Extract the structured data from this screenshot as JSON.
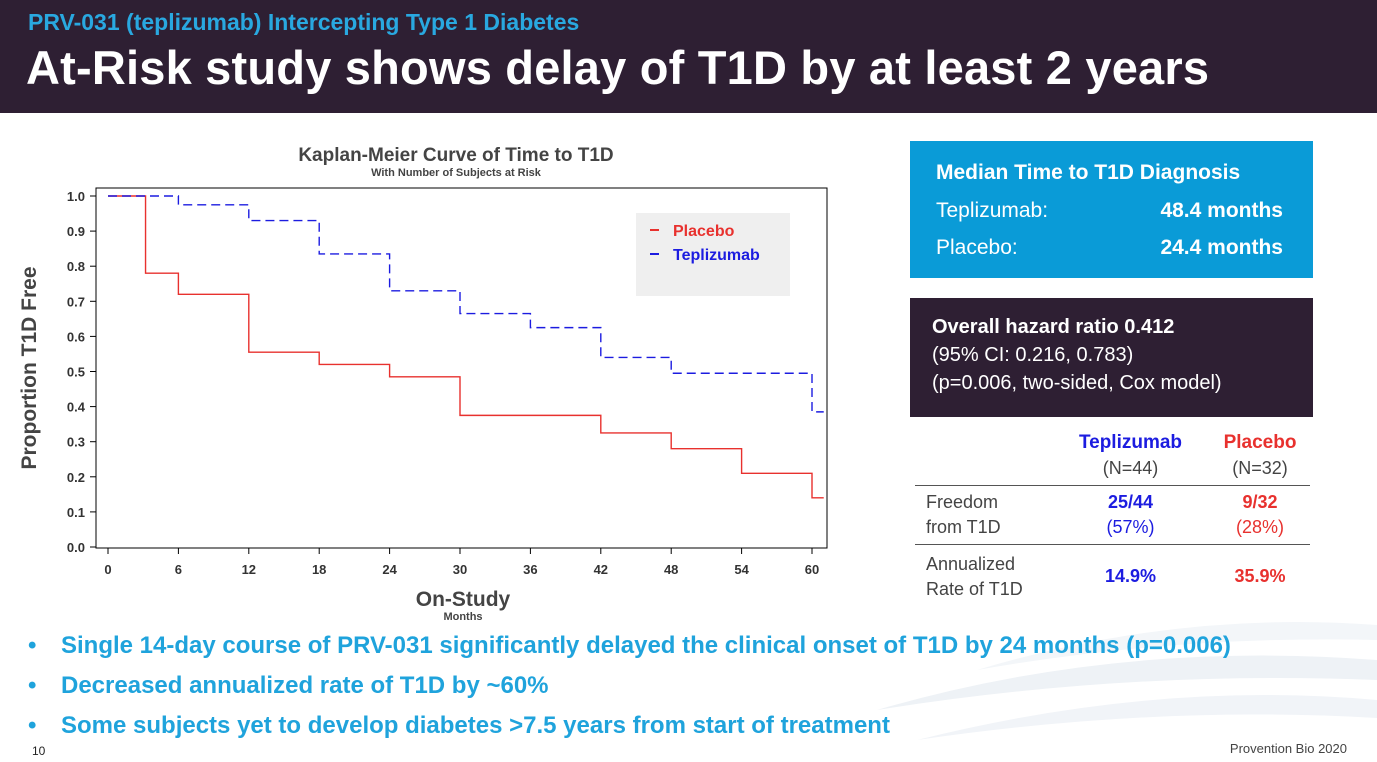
{
  "header": {
    "subtitle": "PRV-031 (teplizumab) Intercepting Type 1 Diabetes",
    "title": "At-Risk study shows delay of T1D by at least 2 years"
  },
  "chart_data": {
    "type": "line",
    "step": true,
    "title": "Kaplan-Meier Curve of Time to T1D",
    "subtitle": "With Number of Subjects at Risk",
    "xlabel": "On-Study",
    "xlabel_sub": "Months",
    "ylabel": "Proportion T1D Free",
    "xlim": [
      0,
      61
    ],
    "ylim": [
      0,
      1.0
    ],
    "xticks": [
      0,
      6,
      12,
      18,
      24,
      30,
      36,
      42,
      48,
      54,
      60
    ],
    "yticks": [
      "0.0",
      "0.1",
      "0.2",
      "0.3",
      "0.4",
      "0.5",
      "0.6",
      "0.7",
      "0.8",
      "0.9",
      "1.0"
    ],
    "legend_position": "top-right",
    "series": [
      {
        "name": "Placebo",
        "color": "#e8312e",
        "dash": false,
        "x": [
          0,
          3.2,
          6,
          12,
          18,
          24,
          30,
          42,
          48,
          54,
          60,
          61
        ],
        "y": [
          1.0,
          0.78,
          0.72,
          0.555,
          0.52,
          0.485,
          0.375,
          0.325,
          0.28,
          0.21,
          0.14,
          0.14
        ]
      },
      {
        "name": "Teplizumab",
        "color": "#1c1ce0",
        "dash": true,
        "x": [
          0,
          6,
          12,
          18,
          24,
          30,
          36,
          42,
          48,
          60,
          61
        ],
        "y": [
          1.0,
          0.975,
          0.93,
          0.835,
          0.73,
          0.665,
          0.625,
          0.54,
          0.495,
          0.385,
          0.385
        ]
      }
    ]
  },
  "median_panel": {
    "heading": "Median Time to T1D Diagnosis",
    "rows": [
      {
        "label": "Teplizumab:",
        "value": "48.4 months"
      },
      {
        "label": "Placebo:",
        "value": "24.4 months"
      }
    ]
  },
  "hazard_panel": {
    "line1": "Overall hazard ratio 0.412",
    "line2": "(95% CI: 0.216, 0.783)",
    "line3": "(p=0.006, two-sided, Cox model)"
  },
  "results_table": {
    "col1_name": "Teplizumab",
    "col1_n": "(N=44)",
    "col2_name": "Placebo",
    "col2_n": "(N=32)",
    "col1_color": "#1c1ce0",
    "col2_color": "#e8312e",
    "rows": [
      {
        "label_line1": "Freedom",
        "label_line2": "from T1D",
        "c1_line1": "25/44",
        "c1_line2": "(57%)",
        "c2_line1": "9/32",
        "c2_line2": "(28%)"
      },
      {
        "label_line1": "Annualized",
        "label_line2": "Rate of T1D",
        "c1": "14.9%",
        "c2": "35.9%"
      }
    ]
  },
  "bullets": [
    "Single 14-day course of PRV-031 significantly delayed the clinical onset of T1D by 24 months (p=0.006)",
    "Decreased annualized rate of T1D by ~60%",
    "Some subjects yet to develop diabetes >7.5 years from start of treatment"
  ],
  "bullet_glyph": "•",
  "page_number": "10",
  "footer": "Provention Bio 2020"
}
